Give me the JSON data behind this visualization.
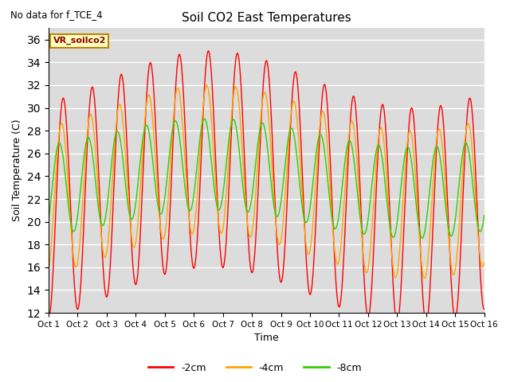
{
  "title": "Soil CO2 East Temperatures",
  "xlabel": "Time",
  "ylabel": "Soil Temperature (C)",
  "note": "No data for f_TCE_4",
  "legend_label": "VR_soilco2",
  "ylim": [
    12,
    37
  ],
  "yticks": [
    12,
    14,
    16,
    18,
    20,
    22,
    24,
    26,
    28,
    30,
    32,
    34,
    36
  ],
  "x_labels": [
    "Oct 1",
    "Oct 2",
    "Oct 3",
    "Oct 4",
    "Oct 5",
    "Oct 6",
    "Oct 7",
    "Oct 8",
    "Oct 9",
    "Oct 10",
    "Oct 11",
    "Oct 12",
    "Oct 13",
    "Oct 14",
    "Oct 15",
    "Oct 16"
  ],
  "bg_color": "#DCDCDC",
  "line_labels": [
    "-2cm",
    "-4cm",
    "-8cm"
  ],
  "line_colors": [
    "#FF0000",
    "#FFA500",
    "#32CD00"
  ],
  "fig_size": [
    6.4,
    4.8
  ],
  "dpi": 100,
  "n_days": 15,
  "pts_per_day": 120,
  "red_mean": 23.0,
  "red_amp": 9.5,
  "red_phase": 0.0,
  "orange_mean": 23.5,
  "orange_amp": 6.5,
  "orange_phase": 0.35,
  "green_mean": 23.8,
  "green_amp": 4.0,
  "green_phase": 0.85,
  "multi_amp": 2.5,
  "multi_period": 14.0
}
